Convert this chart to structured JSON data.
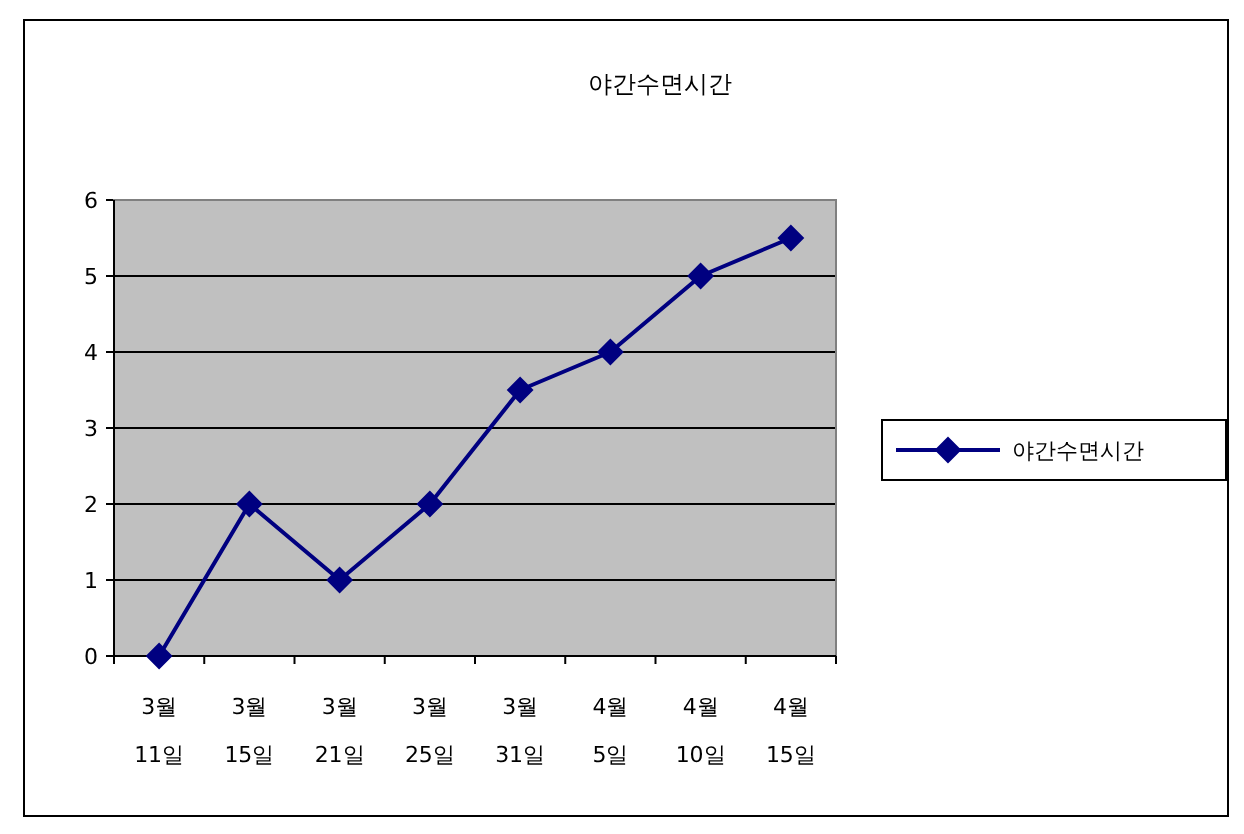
{
  "chart_data": {
    "type": "line",
    "title": "야간수면시간",
    "categories": [
      "3월 11일",
      "3월 15일",
      "3월 21일",
      "3월 25일",
      "3월 31일",
      "4월 5일",
      "4월 10일",
      "4월 15일"
    ],
    "series": [
      {
        "name": "야간수면시간",
        "color": "#000080",
        "values": [
          0,
          2,
          1,
          2,
          3.5,
          4,
          5,
          5.5
        ]
      }
    ],
    "ylim": [
      0,
      6
    ],
    "yticks": [
      0,
      1,
      2,
      3,
      4,
      5,
      6
    ],
    "grid": "y",
    "legend": "right",
    "marker": "diamond",
    "line_style": "solid"
  }
}
